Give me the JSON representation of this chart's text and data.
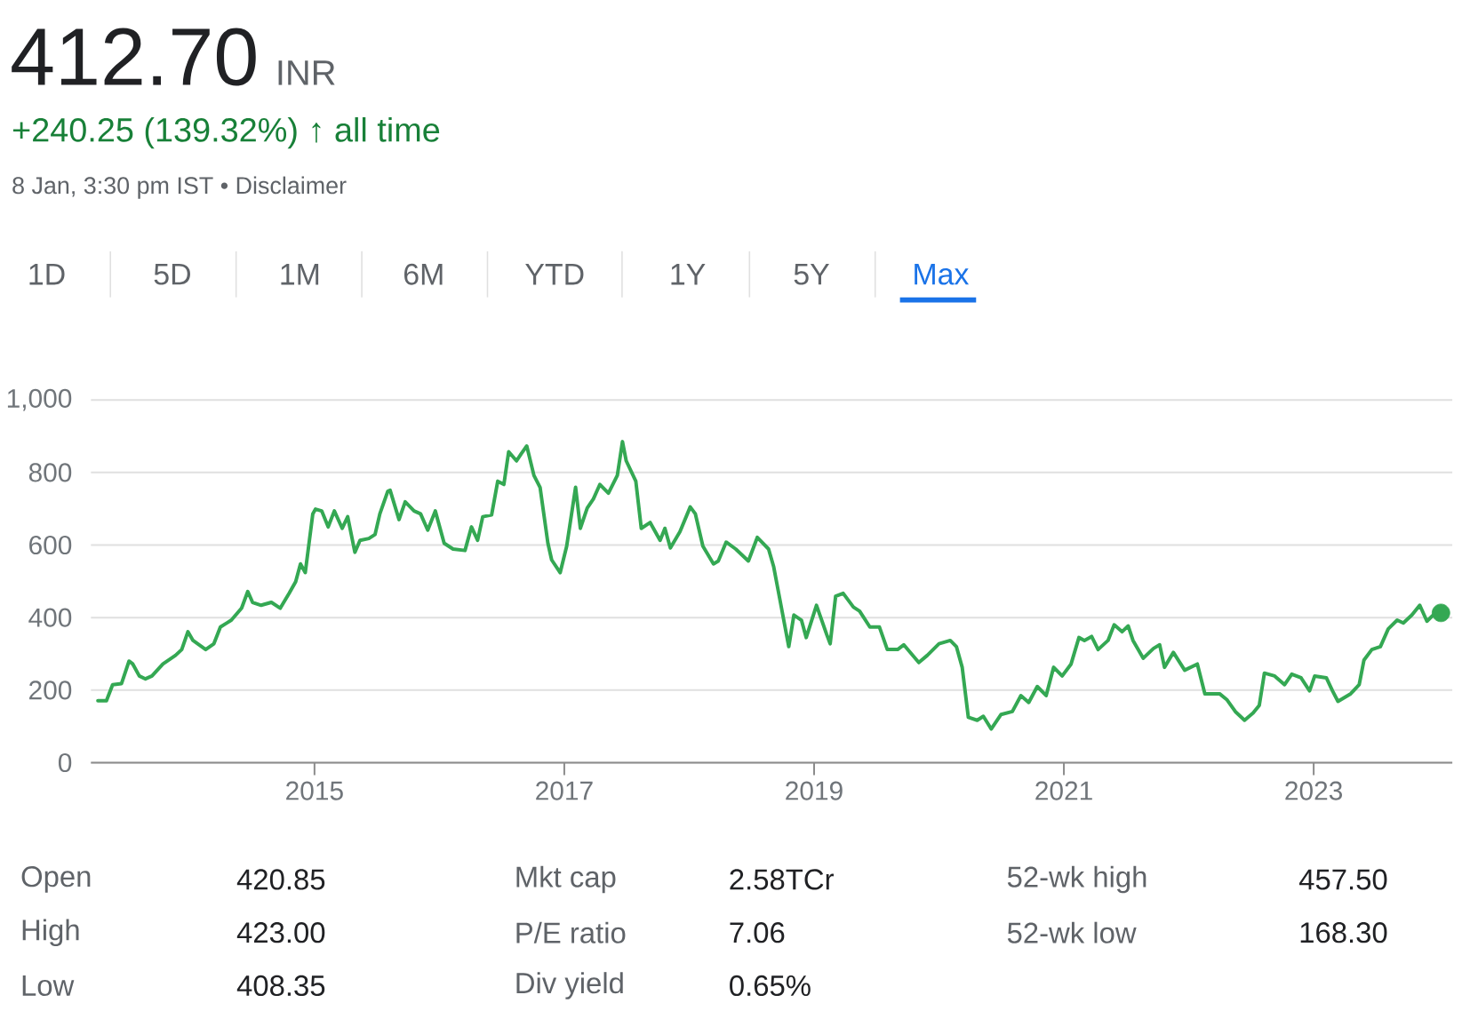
{
  "chart_data": {
    "type": "line",
    "title": "412.70",
    "subtitle": "+240.25 (139.32%) ↑ all time",
    "annotations": [
      "INR",
      "8 Jan, 3:30 pm IST • Disclaimer",
      "1D",
      "5D",
      "1M",
      "6M",
      "YTD",
      "1Y",
      "5Y",
      "Max",
      "Open",
      "420.85",
      "Mkt cap",
      "2.58TCr",
      "52-wk high",
      "457.50",
      "High",
      "423.00",
      "P/E ratio",
      "7.06",
      "52-wk low",
      "168.30",
      "Low",
      "408.35",
      "Div yield",
      "0.65%",
      null,
      null
    ],
    "xlim": [
      "2013-03-18",
      "2024-02-10"
    ],
    "xticks": [
      "2015",
      "2017",
      "2019",
      "2021",
      "2023"
    ],
    "ylim": [
      0,
      1000
    ],
    "yticks": [
      0,
      200,
      400,
      600,
      800,
      {
        "value": 1000,
        "label": "1,000"
      }
    ],
    "grid": "y",
    "series": [
      {
        "color": "#34a853",
        "x": [
          "2013-04-08",
          "2013-05-03",
          "2013-05-21",
          "2013-06-16",
          "2013-07-08",
          "2013-07-19",
          "2013-08-07",
          "2013-08-25",
          "2013-09-13",
          "2013-10-15",
          "2013-11-21",
          "2013-12-09",
          "2013-12-27",
          "2014-01-11",
          "2014-02-17",
          "2014-03-13",
          "2014-04-01",
          "2014-05-03",
          "2014-06-02",
          "2014-06-20",
          "2014-07-04",
          "2014-07-29",
          "2014-08-28",
          "2014-09-23",
          "2014-10-19",
          "2014-11-07",
          "2014-11-21",
          "2014-12-05",
          "2014-12-27",
          "2015-01-04",
          "2015-01-22",
          "2015-02-10",
          "2015-02-28",
          "2015-03-23",
          "2015-04-08",
          "2015-04-29",
          "2015-05-14",
          "2015-06-09",
          "2015-06-27",
          "2015-07-11",
          "2015-08-03",
          "2015-08-10",
          "2015-09-05",
          "2015-09-23",
          "2015-10-19",
          "2015-11-07",
          "2015-11-28",
          "2015-12-20",
          "2016-01-15",
          "2016-02-10",
          "2016-03-16",
          "2016-04-04",
          "2016-04-22",
          "2016-05-07",
          "2016-06-02",
          "2016-06-20",
          "2016-07-08",
          "2016-07-22",
          "2016-08-14",
          "2016-08-28",
          "2016-09-13",
          "2016-10-04",
          "2016-10-22",
          "2016-11-14",
          "2016-11-25",
          "2016-12-20",
          "2017-01-08",
          "2017-02-03",
          "2017-02-17",
          "2017-03-09",
          "2017-03-27",
          "2017-04-15",
          "2017-05-10",
          "2017-06-05",
          "2017-06-20",
          "2017-07-01",
          "2017-07-29",
          "2017-08-14",
          "2017-09-09",
          "2017-10-08",
          "2017-10-22",
          "2017-11-07",
          "2017-12-05",
          "2018-01-04",
          "2018-01-19",
          "2018-02-10",
          "2018-03-13",
          "2018-03-27",
          "2018-04-19",
          "2018-05-17",
          "2018-06-23",
          "2018-07-19",
          "2018-08-21",
          "2018-09-05",
          "2018-09-23",
          "2018-10-19",
          "2018-11-03",
          "2018-11-25",
          "2018-12-09",
          "2019-01-08",
          "2019-02-07",
          "2019-02-17",
          "2019-03-05",
          "2019-03-27",
          "2019-04-26",
          "2019-05-14",
          "2019-06-13",
          "2019-07-11",
          "2019-08-03",
          "2019-09-02",
          "2019-09-20",
          "2019-11-03",
          "2019-11-28",
          "2020-01-01",
          "2020-02-03",
          "2020-02-21",
          "2020-03-09",
          "2020-03-27",
          "2020-04-22",
          "2020-05-10",
          "2020-06-02",
          "2020-07-01",
          "2020-08-03",
          "2020-08-28",
          "2020-09-20",
          "2020-10-15",
          "2020-11-10",
          "2020-12-02",
          "2020-12-27",
          "2021-01-22",
          "2021-02-14",
          "2021-03-02",
          "2021-03-23",
          "2021-04-11",
          "2021-05-10",
          "2021-05-28",
          "2021-06-20",
          "2021-07-08",
          "2021-07-22",
          "2021-08-21",
          "2021-09-20",
          "2021-10-08",
          "2021-10-22",
          "2021-11-17",
          "2021-12-20",
          "2022-01-26",
          "2022-02-17",
          "2022-04-01",
          "2022-04-22",
          "2022-05-17",
          "2022-06-13",
          "2022-07-08",
          "2022-07-26",
          "2022-08-10",
          "2022-09-09",
          "2022-10-08",
          "2022-10-29",
          "2022-11-25",
          "2022-12-20",
          "2023-01-04",
          "2023-02-07",
          "2023-02-25",
          "2023-03-13",
          "2023-04-19",
          "2023-05-14",
          "2023-05-28",
          "2023-06-20",
          "2023-07-15",
          "2023-08-07",
          "2023-09-02",
          "2023-09-20",
          "2023-10-15",
          "2023-11-07",
          "2023-11-28",
          "2023-12-16",
          "2024-01-08"
        ],
        "values": [
          171,
          171,
          215,
          218,
          280,
          272,
          239,
          231,
          239,
          272,
          296,
          312,
          361,
          337,
          312,
          328,
          374,
          393,
          426,
          472,
          442,
          434,
          442,
          426,
          467,
          499,
          548,
          524,
          686,
          699,
          694,
          650,
          694,
          646,
          678,
          580,
          613,
          618,
          629,
          686,
          748,
          751,
          670,
          719,
          694,
          686,
          641,
          694,
          605,
          589,
          585,
          650,
          613,
          678,
          683,
          776,
          767,
          857,
          832,
          852,
          873,
          792,
          759,
          605,
          559,
          524,
          597,
          759,
          646,
          702,
          727,
          767,
          743,
          792,
          885,
          832,
          776,
          646,
          662,
          613,
          646,
          592,
          637,
          705,
          686,
          597,
          548,
          556,
          608,
          589,
          556,
          621,
          589,
          540,
          450,
          320,
          407,
          393,
          345,
          434,
          353,
          328,
          459,
          467,
          429,
          418,
          374,
          374,
          312,
          312,
          325,
          276,
          296,
          328,
          337,
          320,
          263,
          125,
          117,
          128,
          93,
          133,
          141,
          185,
          166,
          210,
          185,
          263,
          239,
          272,
          345,
          337,
          348,
          312,
          337,
          380,
          361,
          377,
          337,
          288,
          315,
          325,
          263,
          304,
          255,
          272,
          190,
          190,
          174,
          141,
          117,
          137,
          158,
          247,
          239,
          215,
          244,
          234,
          198,
          239,
          234,
          198,
          169,
          190,
          215,
          283,
          312,
          320,
          369,
          393,
          385,
          407,
          434,
          390,
          407,
          413
        ]
      },
      {
        "type": "scatter",
        "color": "#34a853",
        "x": [
          "2024-01-08"
        ],
        "values": [
          413
        ]
      }
    ]
  }
}
